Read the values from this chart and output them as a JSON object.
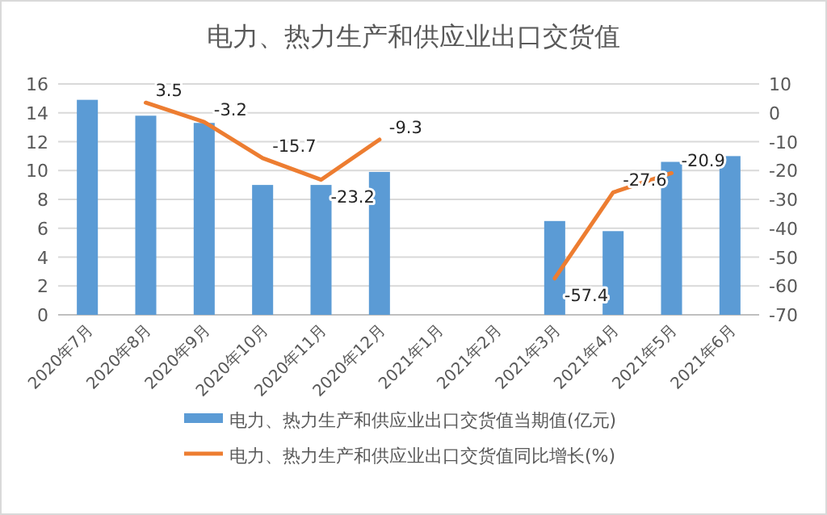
{
  "chart_data": {
    "type": "bar",
    "title": "电力、热力生产和供应业出口交货值",
    "categories": [
      "2020年7月",
      "2020年8月",
      "2020年9月",
      "2020年10月",
      "2020年11月",
      "2020年12月",
      "2021年1月",
      "2021年2月",
      "2021年3月",
      "2021年4月",
      "2021年5月",
      "2021年6月"
    ],
    "series": [
      {
        "name": "电力、热力生产和供应业出口交货值当期值(亿元)",
        "color": "#5b9bd5",
        "values": [
          14.9,
          13.8,
          13.3,
          9.0,
          9.0,
          9.9,
          null,
          null,
          6.5,
          5.8,
          10.6,
          11.0
        ]
      },
      {
        "name": "电力、热力生产和供应业出口交货值同比增长(%)",
        "type": "line",
        "axis": "y2",
        "color": "#ed7d31",
        "data_labels": true,
        "values": [
          null,
          3.5,
          -3.2,
          -15.7,
          -23.2,
          -9.3,
          null,
          null,
          -57.4,
          -27.6,
          -20.9,
          null
        ]
      }
    ],
    "ylim": [
      0,
      16
    ],
    "yticks": [
      0,
      2,
      4,
      6,
      8,
      10,
      12,
      14,
      16
    ],
    "y2lim": [
      -70,
      10
    ],
    "y2ticks": [
      -70,
      -60,
      -50,
      -40,
      -30,
      -20,
      -10,
      0,
      10
    ],
    "grid": "y",
    "legend": "bottom"
  }
}
